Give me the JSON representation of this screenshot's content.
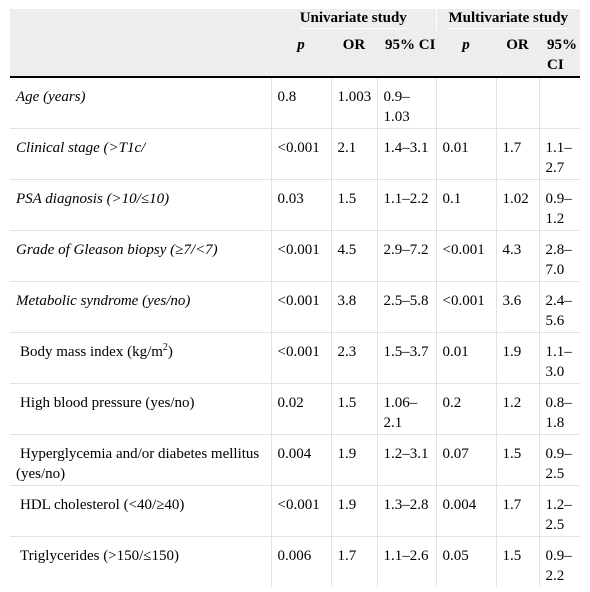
{
  "header": {
    "group_univariate": "Univariate study",
    "group_multivariate": "Multivariate study",
    "col_p": "p",
    "col_or": "OR",
    "col_ci": "95% CI"
  },
  "rows": [
    {
      "label": "Age (years)",
      "italic": true,
      "u_p": "0.8",
      "u_or": "1.003",
      "u_ci": "0.9–1.03",
      "m_p": "",
      "m_or": "",
      "m_ci": ""
    },
    {
      "label": "Clinical stage (>T1c/",
      "italic": true,
      "u_p": "<0.001",
      "u_or": "2.1",
      "u_ci": "1.4–3.1",
      "m_p": "0.01",
      "m_or": "1.7",
      "m_ci": "1.1–2.7"
    },
    {
      "label": "PSA diagnosis (>10/≤10)",
      "italic": true,
      "u_p": "0.03",
      "u_or": "1.5",
      "u_ci": "1.1–2.2",
      "m_p": "0.1",
      "m_or": "1.02",
      "m_ci": "0.9–1.2"
    },
    {
      "label": "Grade of Gleason biopsy (≥7/<7)",
      "italic": true,
      "u_p": "<0.001",
      "u_or": "4.5",
      "u_ci": "2.9–7.2",
      "m_p": "<0.001",
      "m_or": "4.3",
      "m_ci": "2.8–7.0"
    },
    {
      "label": "Metabolic syndrome (yes/no)",
      "italic": true,
      "u_p": "<0.001",
      "u_or": "3.8",
      "u_ci": "2.5–5.8",
      "m_p": "<0.001",
      "m_or": "3.6",
      "m_ci": "2.4–5.6"
    },
    {
      "label": "Body mass index (kg/m",
      "label_sup": "2",
      "label_tail": ")",
      "italic": false,
      "u_p": "<0.001",
      "u_or": "2.3",
      "u_ci": "1.5–3.7",
      "m_p": "0.01",
      "m_or": "1.9",
      "m_ci": "1.1–3.0"
    },
    {
      "label": "High blood pressure (yes/no)",
      "italic": false,
      "u_p": "0.02",
      "u_or": "1.5",
      "u_ci": "1.06–2.1",
      "m_p": "0.2",
      "m_or": "1.2",
      "m_ci": "0.8–1.8"
    },
    {
      "label": "Hyperglycemia and/or diabetes mellitus (yes/no)",
      "italic": false,
      "u_p": "0.004",
      "u_or": "1.9",
      "u_ci": "1.2–3.1",
      "m_p": "0.07",
      "m_or": "1.5",
      "m_ci": "0.9–2.5"
    },
    {
      "label": "HDL cholesterol (<40/≥40)",
      "italic": false,
      "u_p": "<0.001",
      "u_or": "1.9",
      "u_ci": "1.3–2.8",
      "m_p": "0.004",
      "m_or": "1.7",
      "m_ci": "1.2–2.5"
    },
    {
      "label": "Triglycerides (>150/≤150)",
      "italic": false,
      "u_p": "0.006",
      "u_or": "1.7",
      "u_ci": "1.1–2.6",
      "m_p": "0.05",
      "m_or": "1.5",
      "m_ci": "0.9–2.2"
    }
  ]
}
